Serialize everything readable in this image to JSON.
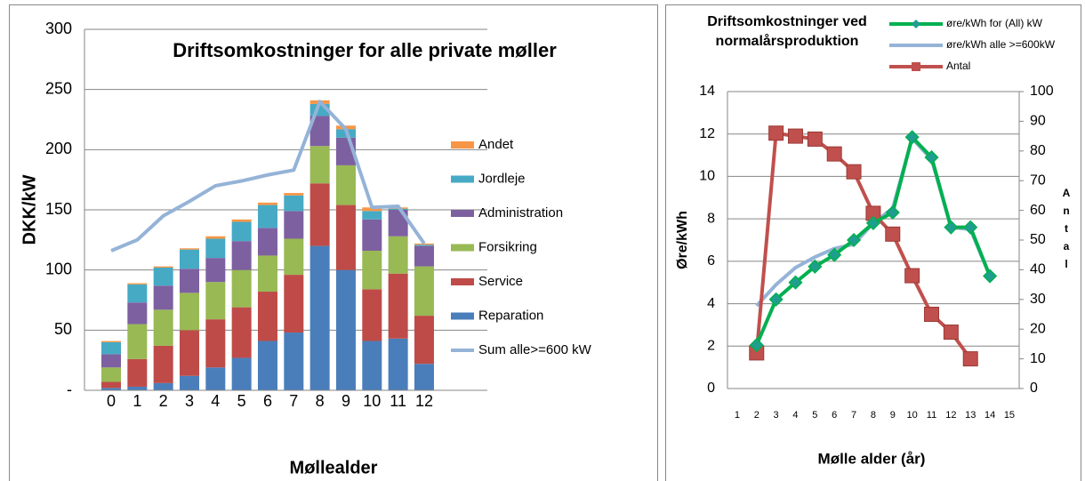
{
  "chart_data": [
    {
      "type": "bar",
      "stacked": true,
      "title": "Driftsomkostninger for alle private møller",
      "ylabel": "DKK/kW",
      "xlabel": "Møllealder",
      "categories": [
        "0",
        "1",
        "2",
        "3",
        "4",
        "5",
        "6",
        "7",
        "8",
        "9",
        "10",
        "11",
        "12"
      ],
      "ylim": [
        0,
        300
      ],
      "yticks": [
        {
          "value": 0,
          "label": "-"
        },
        50,
        100,
        150,
        200,
        250,
        300
      ],
      "grid": true,
      "legend": "right",
      "series": [
        {
          "name": "Reparation",
          "color": "#4a7ebb",
          "values": [
            2,
            3,
            6,
            12,
            19,
            27,
            41,
            48,
            120,
            100,
            41,
            43,
            22
          ]
        },
        {
          "name": "Service",
          "color": "#be4b48",
          "values": [
            5,
            23,
            31,
            38,
            40,
            42,
            41,
            48,
            52,
            54,
            43,
            54,
            40
          ]
        },
        {
          "name": "Forsikring",
          "color": "#98b954",
          "values": [
            12,
            29,
            30,
            31,
            31,
            31,
            30,
            30,
            31,
            33,
            32,
            31,
            41
          ]
        },
        {
          "name": "Administration",
          "color": "#7d60a0",
          "values": [
            11,
            18,
            20,
            20,
            20,
            24,
            23,
            23,
            25,
            23,
            26,
            22,
            17
          ]
        },
        {
          "name": "Jordleje",
          "color": "#46aac5",
          "values": [
            10,
            15,
            15,
            16,
            16,
            16,
            19,
            13,
            10,
            7,
            7,
            1,
            1
          ]
        },
        {
          "name": "Andet",
          "color": "#f79646",
          "values": [
            1,
            1,
            1,
            1,
            2,
            2,
            2,
            2,
            3,
            3,
            3,
            1,
            1
          ]
        },
        {
          "name": "Sum alle>=600 kW",
          "type": "line",
          "color": "#95b3d7",
          "values": [
            116,
            125,
            145,
            157,
            170,
            174,
            179,
            183,
            240,
            217,
            152,
            153,
            122
          ]
        }
      ]
    },
    {
      "type": "line",
      "title": "Driftsomkostninger ved normalårsproduktion",
      "ylabel": "Øre/kWh",
      "y2label": "Antal",
      "xlabel": "Mølle alder (år)",
      "categories": [
        "1",
        "2",
        "3",
        "4",
        "5",
        "6",
        "7",
        "8",
        "9",
        "10",
        "11",
        "12",
        "13",
        "14",
        "15"
      ],
      "ylim": [
        0,
        14
      ],
      "yticks": [
        0,
        2,
        4,
        6,
        8,
        10,
        12,
        14
      ],
      "y2lim": [
        0,
        100
      ],
      "y2ticks": [
        0,
        10,
        20,
        30,
        40,
        50,
        60,
        70,
        80,
        90,
        100
      ],
      "grid": true,
      "legend": "top-right",
      "series": [
        {
          "name": "øre/kWh for (All) kW",
          "color": "#00b050",
          "marker": "diamond",
          "values": [
            null,
            2.05,
            4.2,
            5.0,
            5.75,
            6.3,
            7.0,
            7.8,
            8.3,
            11.85,
            10.9,
            7.6,
            7.6,
            5.3,
            null
          ]
        },
        {
          "name": "øre/kWh alle >=600kW",
          "color": "#95b3d7",
          "values": [
            null,
            3.9,
            4.9,
            5.7,
            6.2,
            6.6,
            6.8,
            7.8,
            8.5,
            11.8,
            10.8,
            7.6,
            7.5,
            5.3,
            null
          ]
        },
        {
          "name": "Antal",
          "color": "#c0504d",
          "marker": "square",
          "axis": "y2",
          "values": [
            null,
            12,
            86,
            85,
            84,
            79,
            73,
            59,
            52,
            38,
            25,
            19,
            10,
            null,
            null
          ]
        }
      ]
    }
  ]
}
